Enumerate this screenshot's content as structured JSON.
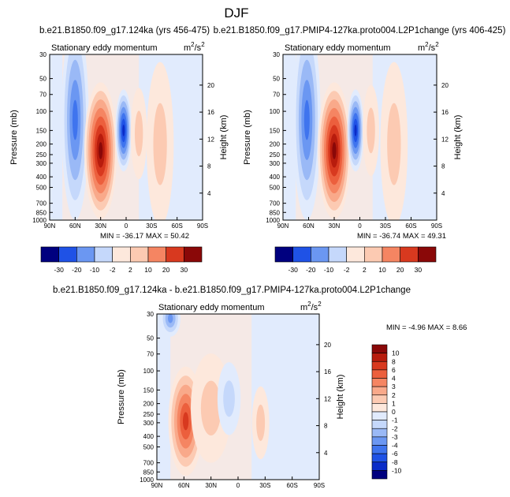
{
  "page_title": "DJF",
  "colors": {
    "scale": [
      "#00007f",
      "#0a2cc8",
      "#1f52e6",
      "#3f74ee",
      "#6b97f2",
      "#9ab9f6",
      "#c5d8fb",
      "#e1ebfd",
      "#fde8dc",
      "#fccab2",
      "#f9a98a",
      "#f58562",
      "#ec5f3d",
      "#d8391f",
      "#b81c0d",
      "#8a0808"
    ]
  },
  "chart_data": [
    {
      "type": "heatmap",
      "name": "panel-1",
      "title": "b.e21.B1850.f09_g17.124ka (yrs 456-475)",
      "subtitle": "Stationary eddy momentum",
      "units_text": "m",
      "units_sup": "2",
      "units_tail": "/s",
      "units_sup2": "2",
      "xlabel": "",
      "ylabel": "Pressure (mb)",
      "y2label": "Height (km)",
      "x_ticks": [
        "90N",
        "60N",
        "30N",
        "0",
        "30S",
        "60S",
        "90S"
      ],
      "x_values": [
        90,
        60,
        30,
        0,
        -30,
        -60,
        -90
      ],
      "y_ticks": [
        "30",
        "50",
        "70",
        "100",
        "150",
        "200",
        "250",
        "300",
        "400",
        "500",
        "700",
        "850",
        "1000"
      ],
      "y_values": [
        30,
        50,
        70,
        100,
        150,
        200,
        250,
        300,
        400,
        500,
        700,
        850,
        1000
      ],
      "y2_ticks": [
        "4",
        "8",
        "12",
        "16",
        "20"
      ],
      "y2_values": [
        4,
        8,
        12,
        16,
        20
      ],
      "stats": "MIN = -36.17   MAX =  50.42",
      "levels": [
        "-30",
        "-20",
        "-10",
        "-2",
        "2",
        "10",
        "20",
        "30"
      ],
      "features": [
        {
          "lat": 60,
          "p": 120,
          "value": -24,
          "sx": 10,
          "sy": 1.1
        },
        {
          "lat": 30,
          "p": 230,
          "value": 42,
          "sx": 12,
          "sy": 0.75
        },
        {
          "lat": 3,
          "p": 150,
          "value": -30,
          "sx": 6,
          "sy": 0.45
        },
        {
          "lat": -15,
          "p": 160,
          "value": 8,
          "sx": 6,
          "sy": 0.5
        },
        {
          "lat": -40,
          "p": 200,
          "value": 4,
          "sx": 10,
          "sy": 0.9
        }
      ]
    },
    {
      "type": "heatmap",
      "name": "panel-2",
      "title": "b.e21.B1850.f09_g17.PMIP4-127ka.proto004.L2P1change (yrs 406-425)",
      "subtitle": "Stationary eddy momentum",
      "units_text": "m",
      "units_sup": "2",
      "units_tail": "/s",
      "units_sup2": "2",
      "xlabel": "",
      "ylabel": "Pressure (mb)",
      "y2label": "Height (km)",
      "x_ticks": [
        "90N",
        "60N",
        "30N",
        "0",
        "30S",
        "60S",
        "90S"
      ],
      "x_values": [
        90,
        60,
        30,
        0,
        -30,
        -60,
        -90
      ],
      "y_ticks": [
        "30",
        "50",
        "70",
        "100",
        "150",
        "200",
        "250",
        "300",
        "400",
        "500",
        "700",
        "850",
        "1000"
      ],
      "y_values": [
        30,
        50,
        70,
        100,
        150,
        200,
        250,
        300,
        400,
        500,
        700,
        850,
        1000
      ],
      "y2_ticks": [
        "4",
        "8",
        "12",
        "16",
        "20"
      ],
      "y2_values": [
        4,
        8,
        12,
        16,
        20
      ],
      "stats": "MIN = -36.74   MAX =  49.31",
      "levels": [
        "-30",
        "-20",
        "-10",
        "-2",
        "2",
        "10",
        "20",
        "30"
      ],
      "features": [
        {
          "lat": 62,
          "p": 120,
          "value": -22,
          "sx": 10,
          "sy": 1.1
        },
        {
          "lat": 30,
          "p": 230,
          "value": 40,
          "sx": 12,
          "sy": 0.75
        },
        {
          "lat": 5,
          "p": 150,
          "value": -32,
          "sx": 6,
          "sy": 0.45
        },
        {
          "lat": -13,
          "p": 150,
          "value": 9,
          "sx": 6,
          "sy": 0.5
        },
        {
          "lat": -40,
          "p": 200,
          "value": 4,
          "sx": 10,
          "sy": 0.9
        }
      ]
    },
    {
      "type": "heatmap",
      "name": "panel-3",
      "title": "b.e21.B1850.f09_g17.124ka - b.e21.B1850.f09_g17.PMIP4-127ka.proto004.L2P1change",
      "subtitle": "Stationary eddy momentum",
      "units_text": "m",
      "units_sup": "2",
      "units_tail": "/s",
      "units_sup2": "2",
      "xlabel": "",
      "ylabel": "Pressure (mb)",
      "y2label": "Height (km)",
      "x_ticks": [
        "90N",
        "60N",
        "30N",
        "0",
        "30S",
        "60S",
        "90S"
      ],
      "x_values": [
        90,
        60,
        30,
        0,
        -30,
        -60,
        -90
      ],
      "y_ticks": [
        "30",
        "50",
        "70",
        "100",
        "150",
        "200",
        "250",
        "300",
        "400",
        "500",
        "700",
        "850",
        "1000"
      ],
      "y_values": [
        30,
        50,
        70,
        100,
        150,
        200,
        250,
        300,
        400,
        500,
        700,
        850,
        1000
      ],
      "y2_ticks": [
        "4",
        "8",
        "12",
        "16",
        "20"
      ],
      "y2_values": [
        4,
        8,
        12,
        16,
        20
      ],
      "stats": "MIN =  -4.96   MAX =   8.66",
      "levels": [
        "-10",
        "-8",
        "-6",
        "-4",
        "-3",
        "-2",
        "-1",
        "0",
        "1",
        "2",
        "3",
        "4",
        "6",
        "8",
        "10"
      ],
      "features": [
        {
          "lat": 58,
          "p": 290,
          "value": 8,
          "sx": 12,
          "sy": 0.6
        },
        {
          "lat": 75,
          "p": 33,
          "value": -5,
          "sx": 7,
          "sy": 0.2
        },
        {
          "lat": 30,
          "p": 220,
          "value": 2,
          "sx": 14,
          "sy": 0.6
        },
        {
          "lat": 10,
          "p": 180,
          "value": -1.5,
          "sx": 8,
          "sy": 0.4
        },
        {
          "lat": -25,
          "p": 300,
          "value": 1.2,
          "sx": 6,
          "sy": 0.4
        }
      ]
    }
  ]
}
